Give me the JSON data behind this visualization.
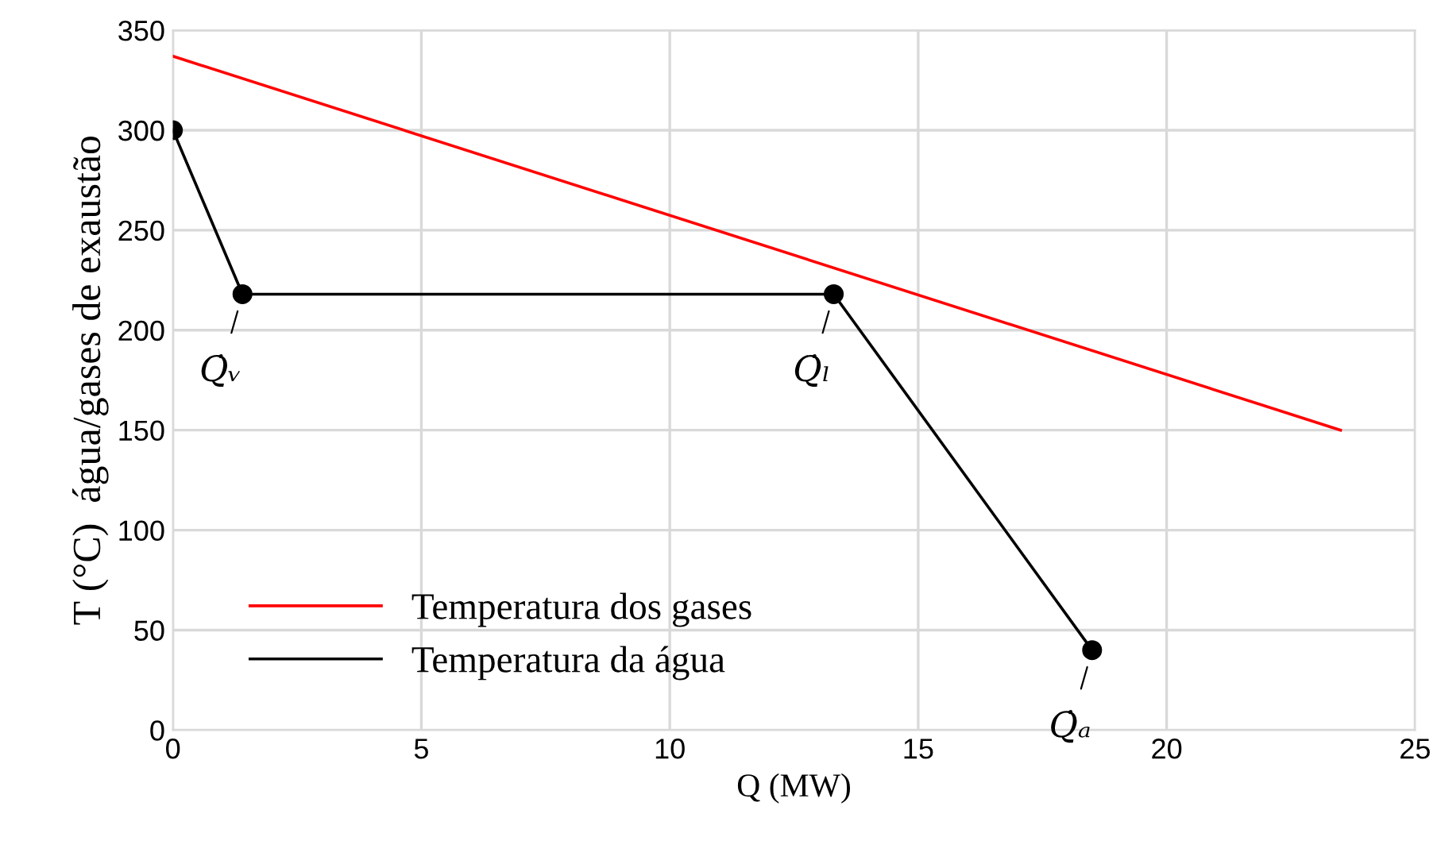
{
  "chart_data": {
    "type": "line",
    "xlabel": "Q (MW)",
    "ylabel": "T (°C)  água/gases de exaustão",
    "xlim": [
      0,
      25
    ],
    "xticks": [
      0,
      5,
      10,
      15,
      20,
      25
    ],
    "ylim": [
      0,
      350
    ],
    "yticks": [
      0,
      50,
      100,
      150,
      200,
      250,
      300,
      350
    ],
    "grid": true,
    "legend": "bottom left",
    "series": [
      {
        "name": "Temperatura dos gases",
        "color": "#ff0000",
        "x": [
          0,
          23.5
        ],
        "values": [
          337,
          150
        ],
        "marker": "none"
      },
      {
        "name": "Temperatura da água",
        "color": "#000000",
        "x": [
          0,
          1.4,
          13.3,
          18.5
        ],
        "values": [
          300,
          218,
          218,
          40
        ],
        "marker": "circle"
      }
    ],
    "annotations": [
      {
        "text": "Q̇ᵥ",
        "x": 1.4,
        "y": 218
      },
      {
        "text": "Q̇ₗ",
        "x": 13.3,
        "y": 218
      },
      {
        "text": "Q̇ₐ",
        "x": 18.5,
        "y": 40
      }
    ]
  }
}
